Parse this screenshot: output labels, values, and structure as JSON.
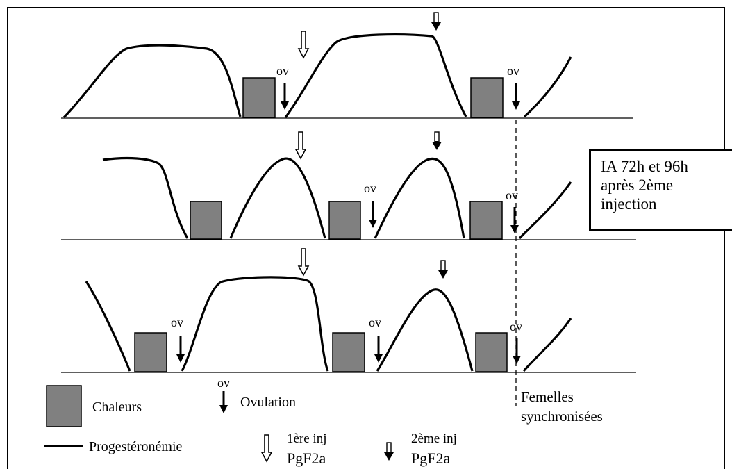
{
  "diagram": {
    "ov_label": "ov",
    "colors": {
      "heat_box_fill": "#808080",
      "line": "#000000",
      "background": "#ffffff"
    },
    "rows": [
      {
        "name": "row-1",
        "heat_periods": 2,
        "ovulations": 2,
        "first_injection_arrows": 1,
        "second_injection_arrows": 1
      },
      {
        "name": "row-2",
        "heat_periods": 3,
        "ovulations": 2,
        "first_injection_arrows": 1,
        "second_injection_arrows": 1
      },
      {
        "name": "row-3",
        "heat_periods": 3,
        "ovulations": 3,
        "first_injection_arrows": 1,
        "second_injection_arrows": 1
      }
    ],
    "ia_box": {
      "line1": "IA 72h et 96h",
      "line2": "après 2ème",
      "line3": "injection"
    },
    "sync_label": {
      "line1": "Femelles",
      "line2": "synchronisées"
    },
    "legend": {
      "heat": "Chaleurs",
      "ovulation_symbol": "ov",
      "ovulation": "Ovulation",
      "progesterone": "Progestéronémie",
      "first_injection_line1": "1ère inj",
      "first_injection_line2": "PgF2a",
      "second_injection_line1": "2ème inj",
      "second_injection_line2": "PgF2a",
      "icons": {
        "heat": "gray-square",
        "ovulation": "thin-down-arrow",
        "progesterone": "black-line",
        "first_injection": "hollow-down-arrow",
        "second_injection": "bold-down-arrow"
      }
    }
  }
}
